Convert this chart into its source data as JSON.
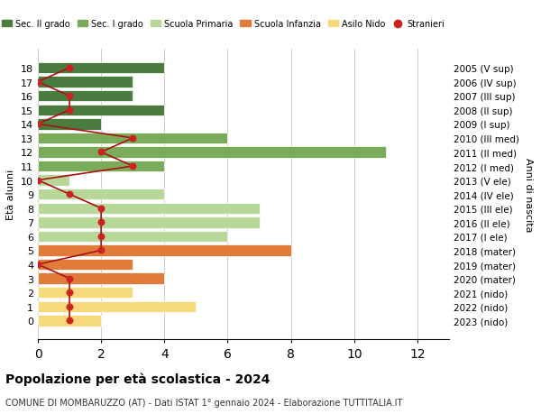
{
  "ages": [
    18,
    17,
    16,
    15,
    14,
    13,
    12,
    11,
    10,
    9,
    8,
    7,
    6,
    5,
    4,
    3,
    2,
    1,
    0
  ],
  "right_labels": [
    "2005 (V sup)",
    "2006 (IV sup)",
    "2007 (III sup)",
    "2008 (II sup)",
    "2009 (I sup)",
    "2010 (III med)",
    "2011 (II med)",
    "2012 (I med)",
    "2013 (V ele)",
    "2014 (IV ele)",
    "2015 (III ele)",
    "2016 (II ele)",
    "2017 (I ele)",
    "2018 (mater)",
    "2019 (mater)",
    "2020 (mater)",
    "2021 (nido)",
    "2022 (nido)",
    "2023 (nido)"
  ],
  "bar_values": [
    4,
    3,
    3,
    4,
    2,
    6,
    11,
    4,
    1,
    4,
    7,
    7,
    6,
    8,
    3,
    4,
    3,
    5,
    2
  ],
  "stranieri": [
    1,
    0,
    1,
    1,
    0,
    3,
    2,
    3,
    0,
    1,
    2,
    2,
    2,
    2,
    0,
    1,
    1,
    1,
    1
  ],
  "bar_colors": [
    "#4a7c3f",
    "#4a7c3f",
    "#4a7c3f",
    "#4a7c3f",
    "#4a7c3f",
    "#7aab5a",
    "#7aab5a",
    "#7aab5a",
    "#b8d89a",
    "#b8d89a",
    "#b8d89a",
    "#b8d89a",
    "#b8d89a",
    "#e07b39",
    "#e07b39",
    "#e07b39",
    "#f5d97a",
    "#f5d97a",
    "#f5d97a"
  ],
  "legend_labels": [
    "Sec. II grado",
    "Sec. I grado",
    "Scuola Primaria",
    "Scuola Infanzia",
    "Asilo Nido",
    "Stranieri"
  ],
  "legend_colors": [
    "#4a7c3f",
    "#7aab5a",
    "#b8d89a",
    "#e07b39",
    "#f5d97a",
    "#cc2222"
  ],
  "stranieri_line_color": "#aa1111",
  "stranieri_dot_color": "#cc2222",
  "xlim": [
    0,
    13
  ],
  "xticks": [
    0,
    2,
    4,
    6,
    8,
    10,
    12
  ],
  "title": "Popolazione per età scolastica - 2024",
  "subtitle": "COMUNE DI MOMBARUZZO (AT) - Dati ISTAT 1° gennaio 2024 - Elaborazione TUTTITALIA.IT",
  "ylabel_left": "Età alunni",
  "ylabel_right": "Anni di nascita",
  "bg_color": "#ffffff",
  "grid_color": "#cccccc"
}
